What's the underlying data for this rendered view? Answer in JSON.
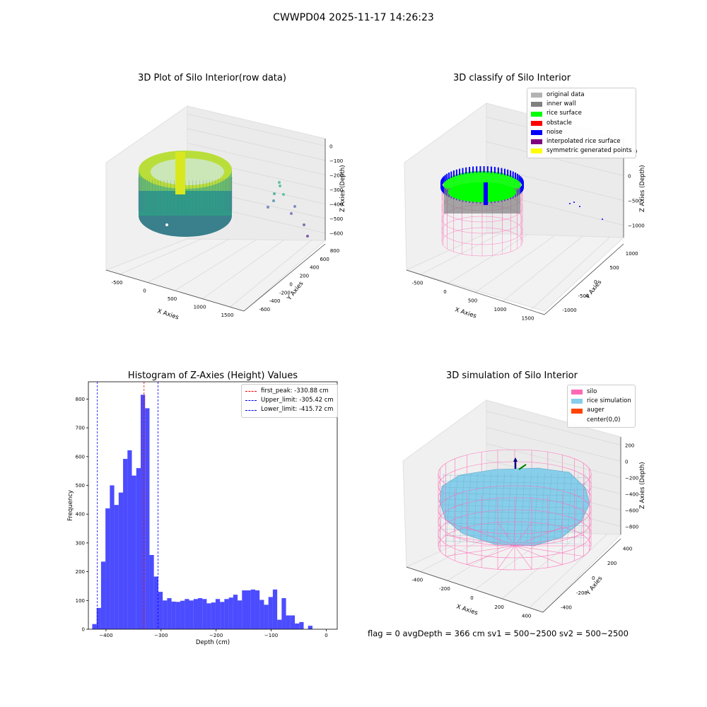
{
  "suptitle": "CWWPD04 2025-11-17 14:26:23",
  "panels": {
    "raw": {
      "title": "3D Plot of Silo Interior(row data)",
      "xlabel": "X Axies",
      "ylabel": "Y Axies",
      "zlabel": "Z Axies (Depth)",
      "xticks": [
        "-500",
        "0",
        "500",
        "1000",
        "1500"
      ],
      "yticks": [
        "-600",
        "-400",
        "-200",
        "0",
        "200",
        "400",
        "600",
        "800"
      ],
      "zticks": [
        "0",
        "−100",
        "−200",
        "−300",
        "−400",
        "−500",
        "−600"
      ]
    },
    "classify": {
      "title": "3D classify of Silo Interior",
      "xlabel": "X Axies",
      "ylabel": "Y Axies",
      "zlabel": "Z Axies (Depth)",
      "xticks": [
        "-500",
        "0",
        "500",
        "1000",
        "1500"
      ],
      "yticks": [
        "-1000",
        "-500",
        "0",
        "500",
        "1000"
      ],
      "zticks": [
        "500",
        "0",
        "−500",
        "−1000"
      ],
      "legend": [
        {
          "label": "original data",
          "color": "#b3b3b3"
        },
        {
          "label": "inner wall",
          "color": "#808080"
        },
        {
          "label": "rice surface",
          "color": "#00ff00"
        },
        {
          "label": "obstacle",
          "color": "#ff0000"
        },
        {
          "label": "noise",
          "color": "#0000ff"
        },
        {
          "label": "interpolated rice surface",
          "color": "#800080"
        },
        {
          "label": "symmetric generated points",
          "color": "#ffff00"
        }
      ]
    },
    "simulation": {
      "title": "3D simulation of Silo Interior",
      "xlabel": "X Axies",
      "ylabel": "Y Axies",
      "zlabel": "Z Axies (Depth)",
      "xticks": [
        "-400",
        "-200",
        "0",
        "200",
        "400"
      ],
      "yticks": [
        "-400",
        "-200",
        "0",
        "200",
        "400"
      ],
      "zticks": [
        "200",
        "0",
        "−200",
        "−400",
        "−600",
        "−800"
      ],
      "legend": [
        {
          "label": "silo",
          "color": "#ff69b4"
        },
        {
          "label": "rice simulation",
          "color": "#87ceeb"
        },
        {
          "label": "auger",
          "color": "#ff4500"
        },
        {
          "label": "center(0,0)",
          "color": ""
        }
      ]
    }
  },
  "footer": "flag = 0     avgDepth = 366 cm  sv1 = 500~2500  sv2 = 500~2500",
  "chart_data": {
    "type": "bar",
    "title": "Histogram of Z-Axies (Height) Values",
    "xlabel": "Depth (cm)",
    "ylabel": "Frequency",
    "xlim": [
      -432,
      20
    ],
    "ylim": [
      0,
      860
    ],
    "xticks": [
      -400,
      -300,
      -200,
      -100,
      0
    ],
    "yticks": [
      0,
      100,
      200,
      300,
      400,
      500,
      600,
      700,
      800
    ],
    "bin_start": -425,
    "bin_width": 8,
    "values": [
      18,
      74,
      235,
      420,
      500,
      432,
      475,
      592,
      622,
      534,
      560,
      815,
      768,
      258,
      183,
      130,
      100,
      108,
      96,
      95,
      99,
      105,
      100,
      105,
      108,
      105,
      90,
      93,
      105,
      95,
      105,
      110,
      120,
      100,
      135,
      135,
      138,
      135,
      102,
      85,
      112,
      138,
      33,
      108,
      48,
      48,
      20,
      25,
      0,
      12
    ],
    "bar_color": "#0000ff",
    "lines": [
      {
        "label": "first_peak: -330.88 cm",
        "x": -330.88,
        "color": "#ff0000"
      },
      {
        "label": "Upper_limit: -305.42 cm",
        "x": -305.42,
        "color": "#0000ff"
      },
      {
        "label": "Lower_limit: -415.72 cm",
        "x": -415.72,
        "color": "#0000ff"
      }
    ]
  }
}
